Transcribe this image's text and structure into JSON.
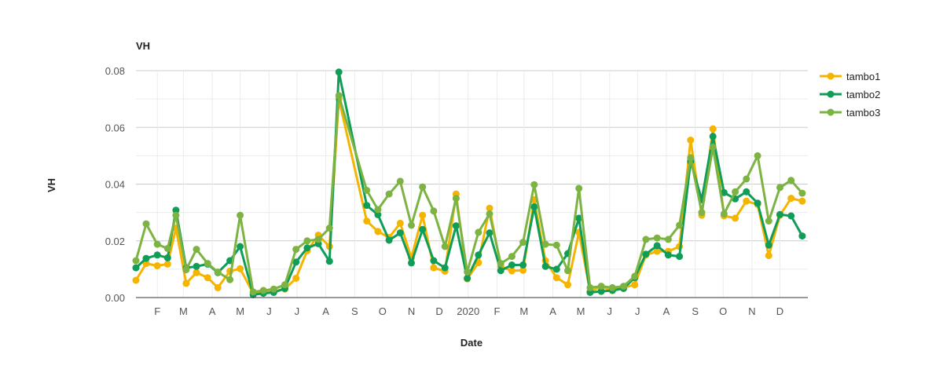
{
  "chart_data": {
    "type": "line",
    "title": "VH",
    "xlabel": "Date",
    "ylabel": "VH",
    "ylim": [
      0,
      0.08
    ],
    "y_ticks": [
      "0.00",
      "0.02",
      "0.04",
      "0.06",
      "0.08"
    ],
    "x_range": [
      "2019-01-09",
      "2020-12-31"
    ],
    "x_tick_labels": [
      {
        "date": "2019-02-01",
        "label": "F"
      },
      {
        "date": "2019-03-01",
        "label": "M"
      },
      {
        "date": "2019-04-01",
        "label": "A"
      },
      {
        "date": "2019-05-01",
        "label": "M"
      },
      {
        "date": "2019-06-01",
        "label": "J"
      },
      {
        "date": "2019-07-01",
        "label": "J"
      },
      {
        "date": "2019-08-01",
        "label": "A"
      },
      {
        "date": "2019-09-01",
        "label": "S"
      },
      {
        "date": "2019-10-01",
        "label": "O"
      },
      {
        "date": "2019-11-01",
        "label": "N"
      },
      {
        "date": "2019-12-01",
        "label": "D"
      },
      {
        "date": "2020-01-01",
        "label": "2020"
      },
      {
        "date": "2020-02-01",
        "label": "F"
      },
      {
        "date": "2020-03-01",
        "label": "M"
      },
      {
        "date": "2020-04-01",
        "label": "A"
      },
      {
        "date": "2020-05-01",
        "label": "M"
      },
      {
        "date": "2020-06-01",
        "label": "J"
      },
      {
        "date": "2020-07-01",
        "label": "J"
      },
      {
        "date": "2020-08-01",
        "label": "A"
      },
      {
        "date": "2020-09-01",
        "label": "S"
      },
      {
        "date": "2020-10-01",
        "label": "O"
      },
      {
        "date": "2020-11-01",
        "label": "N"
      },
      {
        "date": "2020-12-01",
        "label": "D"
      }
    ],
    "legend_position": "right",
    "grid": true,
    "series": [
      {
        "name": "tambo1",
        "color": "#f4b400",
        "points": [
          [
            "2019-01-09",
            0.0061
          ],
          [
            "2019-01-20",
            0.012
          ],
          [
            "2019-02-01",
            0.0112
          ],
          [
            "2019-02-12",
            0.0118
          ],
          [
            "2019-02-21",
            0.0245
          ],
          [
            "2019-03-04",
            0.005
          ],
          [
            "2019-03-15",
            0.0088
          ],
          [
            "2019-03-27",
            0.007
          ],
          [
            "2019-04-07",
            0.0035
          ],
          [
            "2019-04-20",
            0.0093
          ],
          [
            "2019-05-01",
            0.0102
          ],
          [
            "2019-05-15",
            0.0015
          ],
          [
            "2019-05-26",
            0.0025
          ],
          [
            "2019-06-06",
            0.0022
          ],
          [
            "2019-06-18",
            0.003
          ],
          [
            "2019-06-30",
            0.0068
          ],
          [
            "2019-07-12",
            0.0165
          ],
          [
            "2019-07-24",
            0.022
          ],
          [
            "2019-08-05",
            0.018
          ],
          [
            "2019-08-15",
            0.07
          ],
          [
            "2019-09-14",
            0.027
          ],
          [
            "2019-09-26",
            0.0233
          ],
          [
            "2019-10-08",
            0.0212
          ],
          [
            "2019-10-20",
            0.0262
          ],
          [
            "2019-11-01",
            0.014
          ],
          [
            "2019-11-13",
            0.029
          ],
          [
            "2019-11-25",
            0.0105
          ],
          [
            "2019-12-07",
            0.0093
          ],
          [
            "2019-12-19",
            0.0365
          ],
          [
            "2019-12-31",
            0.0066
          ],
          [
            "2020-01-12",
            0.0123
          ],
          [
            "2020-01-24",
            0.0315
          ],
          [
            "2020-02-05",
            0.011
          ],
          [
            "2020-02-17",
            0.0094
          ],
          [
            "2020-02-29",
            0.0096
          ],
          [
            "2020-03-12",
            0.0345
          ],
          [
            "2020-03-24",
            0.013
          ],
          [
            "2020-04-05",
            0.007
          ],
          [
            "2020-04-17",
            0.0045
          ],
          [
            "2020-04-29",
            0.023
          ],
          [
            "2020-05-11",
            0.0022
          ],
          [
            "2020-05-23",
            0.0038
          ],
          [
            "2020-06-04",
            0.0025
          ],
          [
            "2020-06-16",
            0.0035
          ],
          [
            "2020-06-28",
            0.0045
          ],
          [
            "2020-07-10",
            0.015
          ],
          [
            "2020-07-22",
            0.0163
          ],
          [
            "2020-08-03",
            0.0163
          ],
          [
            "2020-08-15",
            0.018
          ],
          [
            "2020-08-27",
            0.0555
          ],
          [
            "2020-09-08",
            0.029
          ],
          [
            "2020-09-20",
            0.0595
          ],
          [
            "2020-10-02",
            0.0288
          ],
          [
            "2020-10-14",
            0.028
          ],
          [
            "2020-10-26",
            0.034
          ],
          [
            "2020-11-07",
            0.0328
          ],
          [
            "2020-11-19",
            0.0148
          ],
          [
            "2020-12-01",
            0.029
          ],
          [
            "2020-12-13",
            0.035
          ],
          [
            "2020-12-25",
            0.034
          ]
        ]
      },
      {
        "name": "tambo2",
        "color": "#0f9d58",
        "points": [
          [
            "2019-01-09",
            0.0105
          ],
          [
            "2019-01-20",
            0.0138
          ],
          [
            "2019-02-01",
            0.015
          ],
          [
            "2019-02-12",
            0.014
          ],
          [
            "2019-02-21",
            0.0308
          ],
          [
            "2019-03-04",
            0.0105
          ],
          [
            "2019-03-15",
            0.011
          ],
          [
            "2019-03-27",
            0.0118
          ],
          [
            "2019-04-07",
            0.0088
          ],
          [
            "2019-04-20",
            0.013
          ],
          [
            "2019-05-01",
            0.018
          ],
          [
            "2019-05-15",
            0.001
          ],
          [
            "2019-05-26",
            0.0015
          ],
          [
            "2019-06-06",
            0.0018
          ],
          [
            "2019-06-18",
            0.0032
          ],
          [
            "2019-06-30",
            0.0125
          ],
          [
            "2019-07-12",
            0.0175
          ],
          [
            "2019-07-24",
            0.019
          ],
          [
            "2019-08-05",
            0.0128
          ],
          [
            "2019-08-15",
            0.0795
          ],
          [
            "2019-09-14",
            0.0325
          ],
          [
            "2019-09-26",
            0.0292
          ],
          [
            "2019-10-08",
            0.0202
          ],
          [
            "2019-10-20",
            0.0228
          ],
          [
            "2019-11-01",
            0.0122
          ],
          [
            "2019-11-13",
            0.024
          ],
          [
            "2019-11-25",
            0.013
          ],
          [
            "2019-12-07",
            0.0105
          ],
          [
            "2019-12-19",
            0.0253
          ],
          [
            "2019-12-31",
            0.0068
          ],
          [
            "2020-01-12",
            0.015
          ],
          [
            "2020-01-24",
            0.0228
          ],
          [
            "2020-02-05",
            0.0095
          ],
          [
            "2020-02-17",
            0.0115
          ],
          [
            "2020-02-29",
            0.0115
          ],
          [
            "2020-03-12",
            0.032
          ],
          [
            "2020-03-24",
            0.011
          ],
          [
            "2020-04-05",
            0.01
          ],
          [
            "2020-04-17",
            0.0155
          ],
          [
            "2020-04-29",
            0.028
          ],
          [
            "2020-05-11",
            0.0018
          ],
          [
            "2020-05-23",
            0.0022
          ],
          [
            "2020-06-04",
            0.0025
          ],
          [
            "2020-06-16",
            0.0032
          ],
          [
            "2020-06-28",
            0.007
          ],
          [
            "2020-07-10",
            0.0153
          ],
          [
            "2020-07-22",
            0.0183
          ],
          [
            "2020-08-03",
            0.015
          ],
          [
            "2020-08-15",
            0.0145
          ],
          [
            "2020-08-27",
            0.048
          ],
          [
            "2020-09-08",
            0.0345
          ],
          [
            "2020-09-20",
            0.0568
          ],
          [
            "2020-10-02",
            0.037
          ],
          [
            "2020-10-14",
            0.0348
          ],
          [
            "2020-10-26",
            0.0373
          ],
          [
            "2020-11-07",
            0.0333
          ],
          [
            "2020-11-19",
            0.0185
          ],
          [
            "2020-12-01",
            0.0293
          ],
          [
            "2020-12-13",
            0.0288
          ],
          [
            "2020-12-25",
            0.0217
          ]
        ]
      },
      {
        "name": "tambo3",
        "color": "#7cb342",
        "points": [
          [
            "2019-01-09",
            0.013
          ],
          [
            "2019-01-20",
            0.026
          ],
          [
            "2019-02-01",
            0.0188
          ],
          [
            "2019-02-12",
            0.0173
          ],
          [
            "2019-02-21",
            0.029
          ],
          [
            "2019-03-04",
            0.0098
          ],
          [
            "2019-03-15",
            0.017
          ],
          [
            "2019-03-27",
            0.012
          ],
          [
            "2019-04-07",
            0.009
          ],
          [
            "2019-04-20",
            0.0063
          ],
          [
            "2019-05-01",
            0.029
          ],
          [
            "2019-05-15",
            0.002
          ],
          [
            "2019-05-26",
            0.0025
          ],
          [
            "2019-06-06",
            0.003
          ],
          [
            "2019-06-18",
            0.0045
          ],
          [
            "2019-06-30",
            0.017
          ],
          [
            "2019-07-12",
            0.02
          ],
          [
            "2019-07-24",
            0.0205
          ],
          [
            "2019-08-05",
            0.0245
          ],
          [
            "2019-08-15",
            0.0712
          ],
          [
            "2019-09-14",
            0.0378
          ],
          [
            "2019-09-26",
            0.031
          ],
          [
            "2019-10-08",
            0.0365
          ],
          [
            "2019-10-20",
            0.041
          ],
          [
            "2019-11-01",
            0.0255
          ],
          [
            "2019-11-13",
            0.039
          ],
          [
            "2019-11-25",
            0.0305
          ],
          [
            "2019-12-07",
            0.018
          ],
          [
            "2019-12-19",
            0.035
          ],
          [
            "2019-12-31",
            0.009
          ],
          [
            "2020-01-12",
            0.023
          ],
          [
            "2020-01-24",
            0.0295
          ],
          [
            "2020-02-05",
            0.012
          ],
          [
            "2020-02-17",
            0.0145
          ],
          [
            "2020-02-29",
            0.0195
          ],
          [
            "2020-03-12",
            0.0398
          ],
          [
            "2020-03-24",
            0.0188
          ],
          [
            "2020-04-05",
            0.0185
          ],
          [
            "2020-04-17",
            0.0095
          ],
          [
            "2020-04-29",
            0.0385
          ],
          [
            "2020-05-11",
            0.0035
          ],
          [
            "2020-05-23",
            0.004
          ],
          [
            "2020-06-04",
            0.0035
          ],
          [
            "2020-06-16",
            0.004
          ],
          [
            "2020-06-28",
            0.0075
          ],
          [
            "2020-07-10",
            0.0205
          ],
          [
            "2020-07-22",
            0.021
          ],
          [
            "2020-08-03",
            0.0205
          ],
          [
            "2020-08-15",
            0.0255
          ],
          [
            "2020-08-27",
            0.0493
          ],
          [
            "2020-09-08",
            0.03
          ],
          [
            "2020-09-20",
            0.053
          ],
          [
            "2020-10-02",
            0.0295
          ],
          [
            "2020-10-14",
            0.0373
          ],
          [
            "2020-10-26",
            0.0418
          ],
          [
            "2020-11-07",
            0.05
          ],
          [
            "2020-11-19",
            0.027
          ],
          [
            "2020-12-01",
            0.0388
          ],
          [
            "2020-12-13",
            0.0413
          ],
          [
            "2020-12-25",
            0.0368
          ]
        ]
      }
    ]
  }
}
